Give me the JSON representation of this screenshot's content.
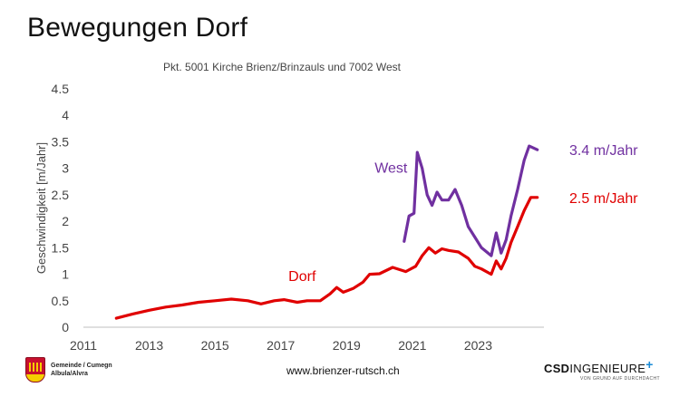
{
  "slide": {
    "title": "Bewegungen Dorf"
  },
  "chart_data": {
    "type": "line",
    "title": "Pkt. 5001 Kirche Brienz/Brinzauls und 7002 West",
    "xlabel": "",
    "ylabel": "Geschwindigkeit [m/Jahr]",
    "xlim": [
      2011,
      2025
    ],
    "ylim": [
      0,
      4.5
    ],
    "x_ticks": [
      2011,
      2013,
      2015,
      2017,
      2019,
      2021,
      2023
    ],
    "y_ticks": [
      0,
      0.5,
      1,
      1.5,
      2,
      2.5,
      3,
      3.5,
      4,
      4.5
    ],
    "y_tick_labels": [
      "0",
      "0.5",
      "1",
      "1.5",
      "2",
      "2.5",
      "3",
      "3.5",
      "4",
      "4.5"
    ],
    "grid": false,
    "series": [
      {
        "name": "Dorf",
        "color": "#e00000",
        "end_label": "2.5 m/Jahr",
        "points": [
          [
            2012.0,
            0.17
          ],
          [
            2012.5,
            0.25
          ],
          [
            2013.0,
            0.32
          ],
          [
            2013.5,
            0.38
          ],
          [
            2014.0,
            0.42
          ],
          [
            2014.5,
            0.47
          ],
          [
            2015.0,
            0.5
          ],
          [
            2015.5,
            0.53
          ],
          [
            2016.0,
            0.5
          ],
          [
            2016.4,
            0.44
          ],
          [
            2016.8,
            0.5
          ],
          [
            2017.1,
            0.52
          ],
          [
            2017.5,
            0.47
          ],
          [
            2017.8,
            0.5
          ],
          [
            2018.2,
            0.5
          ],
          [
            2018.5,
            0.63
          ],
          [
            2018.7,
            0.75
          ],
          [
            2018.9,
            0.66
          ],
          [
            2019.2,
            0.73
          ],
          [
            2019.5,
            0.85
          ],
          [
            2019.7,
            1.0
          ],
          [
            2020.0,
            1.01
          ],
          [
            2020.4,
            1.13
          ],
          [
            2020.8,
            1.05
          ],
          [
            2021.1,
            1.15
          ],
          [
            2021.3,
            1.35
          ],
          [
            2021.5,
            1.5
          ],
          [
            2021.7,
            1.4
          ],
          [
            2021.9,
            1.48
          ],
          [
            2022.1,
            1.45
          ],
          [
            2022.4,
            1.42
          ],
          [
            2022.7,
            1.3
          ],
          [
            2022.9,
            1.15
          ],
          [
            2023.1,
            1.1
          ],
          [
            2023.4,
            1.0
          ],
          [
            2023.55,
            1.25
          ],
          [
            2023.7,
            1.1
          ],
          [
            2023.85,
            1.3
          ],
          [
            2024.0,
            1.6
          ],
          [
            2024.2,
            1.9
          ],
          [
            2024.4,
            2.2
          ],
          [
            2024.6,
            2.45
          ],
          [
            2024.8,
            2.45
          ]
        ]
      },
      {
        "name": "West",
        "color": "#7030a0",
        "end_label": "3.4 m/Jahr",
        "points": [
          [
            2020.75,
            1.62
          ],
          [
            2020.9,
            2.1
          ],
          [
            2021.05,
            2.15
          ],
          [
            2021.15,
            3.3
          ],
          [
            2021.3,
            3.0
          ],
          [
            2021.45,
            2.5
          ],
          [
            2021.6,
            2.3
          ],
          [
            2021.75,
            2.55
          ],
          [
            2021.9,
            2.4
          ],
          [
            2022.1,
            2.4
          ],
          [
            2022.3,
            2.6
          ],
          [
            2022.5,
            2.3
          ],
          [
            2022.7,
            1.9
          ],
          [
            2022.9,
            1.7
          ],
          [
            2023.1,
            1.5
          ],
          [
            2023.4,
            1.35
          ],
          [
            2023.55,
            1.78
          ],
          [
            2023.7,
            1.4
          ],
          [
            2023.85,
            1.65
          ],
          [
            2024.0,
            2.1
          ],
          [
            2024.2,
            2.6
          ],
          [
            2024.4,
            3.15
          ],
          [
            2024.55,
            3.42
          ],
          [
            2024.8,
            3.35
          ]
        ]
      }
    ],
    "annotations": [
      {
        "text": "Dorf",
        "color": "#e00000",
        "x": 2017.65,
        "y": 0.87
      },
      {
        "text": "West",
        "color": "#7030a0",
        "x": 2020.35,
        "y": 2.92
      }
    ]
  },
  "footer": {
    "gemeinde_line1": "Gemeinde / Cumegn",
    "gemeinde_line2": "Albula/Alvra",
    "url": "www.brienzer-rutsch.ch",
    "company_bold": "CSD",
    "company_rest": "INGENIEURE",
    "company_plus": "+",
    "tagline": "VON GRUND AUF DURCHDACHT"
  }
}
